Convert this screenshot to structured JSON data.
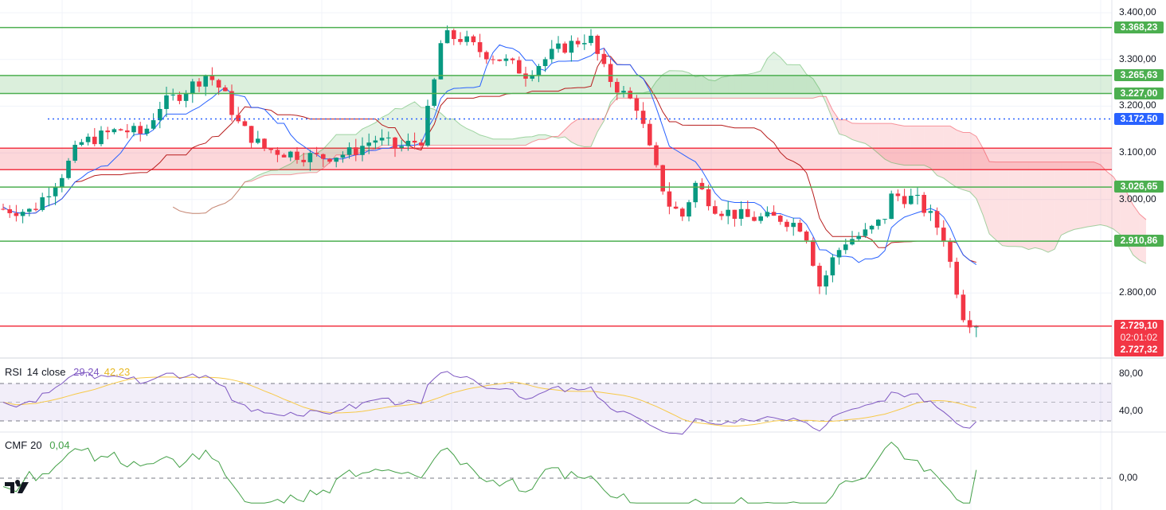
{
  "chart_data": {
    "type": "candlestick",
    "price_axis": {
      "ticks": [
        "3.400,00",
        "3.300,00",
        "3.200,00",
        "3.100,00",
        "3.000,00",
        "2.800,00"
      ],
      "tick_values": [
        3400,
        3300,
        3200,
        3100,
        3000,
        2800
      ],
      "range": [
        2680,
        3428
      ]
    },
    "price_path": [
      [
        0,
        2980
      ],
      [
        40,
        2975
      ],
      [
        80,
        3060
      ],
      [
        100,
        3120
      ],
      [
        150,
        3150
      ],
      [
        180,
        3140
      ],
      [
        200,
        3200
      ],
      [
        230,
        3230
      ],
      [
        260,
        3270
      ],
      [
        280,
        3230
      ],
      [
        300,
        3160
      ],
      [
        330,
        3110
      ],
      [
        360,
        3100
      ],
      [
        400,
        3090
      ],
      [
        440,
        3100
      ],
      [
        470,
        3130
      ],
      [
        500,
        3110
      ],
      [
        530,
        3130
      ],
      [
        545,
        3250
      ],
      [
        555,
        3350
      ],
      [
        580,
        3345
      ],
      [
        600,
        3320
      ],
      [
        630,
        3300
      ],
      [
        660,
        3270
      ],
      [
        700,
        3320
      ],
      [
        740,
        3350
      ],
      [
        760,
        3270
      ],
      [
        780,
        3230
      ],
      [
        800,
        3200
      ],
      [
        820,
        3080
      ],
      [
        840,
        2990
      ],
      [
        860,
        2960
      ],
      [
        870,
        3040
      ],
      [
        900,
        2980
      ],
      [
        940,
        2960
      ],
      [
        980,
        2960
      ],
      [
        1010,
        2940
      ],
      [
        1030,
        2810
      ],
      [
        1045,
        2870
      ],
      [
        1060,
        2910
      ],
      [
        1090,
        2930
      ],
      [
        1110,
        2960
      ],
      [
        1120,
        3010
      ],
      [
        1150,
        3000
      ],
      [
        1170,
        2960
      ],
      [
        1185,
        2920
      ],
      [
        1195,
        2850
      ],
      [
        1210,
        2750
      ],
      [
        1230,
        2727
      ]
    ],
    "levels": [
      {
        "value": 3368.23,
        "label": "3.368,23",
        "color": "#4caf50"
      },
      {
        "value": 3265.63,
        "label": "3.265,63",
        "color": "#4caf50"
      },
      {
        "value": 3227.0,
        "label": "3.227,00",
        "color": "#4caf50"
      },
      {
        "value": 3026.65,
        "label": "3.026,65",
        "color": "#4caf50"
      },
      {
        "value": 2910.86,
        "label": "2.910,86",
        "color": "#4caf50"
      }
    ],
    "green_zone": [
      3227.0,
      3265.63
    ],
    "red_zone": [
      3064,
      3110
    ],
    "dotted_level": {
      "value": 3172.5,
      "label": "3.172,50",
      "color": "#2962ff"
    },
    "last_price": {
      "value": 2729.1,
      "label": "2.729,10",
      "countdown": "02:01:02",
      "prev": "2.727,32",
      "color": "#f23645"
    },
    "rsi": {
      "title": "RSI",
      "length": "14",
      "source": "close",
      "value": "29,24",
      "ma_value": "42,23",
      "ticks": [
        "80,00",
        "40,00"
      ],
      "upper": 70,
      "middle": 50,
      "lower": 30,
      "color": "#7e57c2",
      "ma_color": "#f7c948"
    },
    "cmf": {
      "title": "CMF",
      "length": "20",
      "value": "0,04",
      "ticks": [
        "0,00"
      ],
      "color": "#43a047"
    },
    "colors": {
      "up": "#089981",
      "down": "#f23645",
      "tenkan": "#2962ff",
      "kijun": "#b71c1c"
    }
  }
}
